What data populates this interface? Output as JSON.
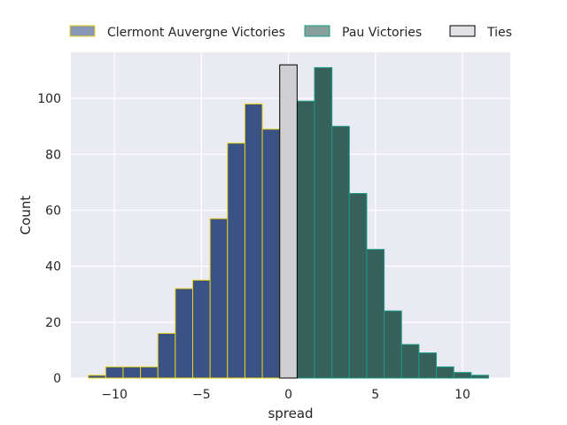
{
  "chart_data": {
    "type": "bar",
    "xlabel": "spread",
    "ylabel": "Count",
    "xlim": [
      -12.5,
      12.75
    ],
    "ylim": [
      0,
      116.5
    ],
    "xticks": [
      -10,
      -5,
      0,
      5,
      10
    ],
    "xtick_labels": [
      "−10",
      "−5",
      "0",
      "5",
      "10"
    ],
    "yticks": [
      0,
      20,
      40,
      60,
      80,
      100
    ],
    "yticks_labels": [
      "0",
      "20",
      "40",
      "60",
      "80",
      "100"
    ],
    "grid": true,
    "legend_position": "top, outside plot",
    "bin_width": 1,
    "series": [
      {
        "name": "Clermont Auvergne Victories",
        "fill": "#3b5284",
        "edge": "#e6d21c",
        "bins": [
          {
            "x": -11,
            "count": 1
          },
          {
            "x": -10,
            "count": 4
          },
          {
            "x": -9,
            "count": 4
          },
          {
            "x": -8,
            "count": 4
          },
          {
            "x": -7,
            "count": 16
          },
          {
            "x": -6,
            "count": 32
          },
          {
            "x": -5,
            "count": 35
          },
          {
            "x": -4,
            "count": 57
          },
          {
            "x": -3,
            "count": 84
          },
          {
            "x": -2,
            "count": 98
          },
          {
            "x": -1,
            "count": 89
          }
        ]
      },
      {
        "name": "Pau Victories",
        "fill": "#36605a",
        "edge": "#1a9a86",
        "bins": [
          {
            "x": 1,
            "count": 99
          },
          {
            "x": 2,
            "count": 111
          },
          {
            "x": 3,
            "count": 90
          },
          {
            "x": 4,
            "count": 66
          },
          {
            "x": 5,
            "count": 46
          },
          {
            "x": 6,
            "count": 24
          },
          {
            "x": 7,
            "count": 12
          },
          {
            "x": 8,
            "count": 9
          },
          {
            "x": 9,
            "count": 4
          },
          {
            "x": 10,
            "count": 2
          },
          {
            "x": 11,
            "count": 1
          }
        ]
      },
      {
        "name": "Ties",
        "fill": "#cfcfd2",
        "edge": "#000000",
        "bins": [
          {
            "x": 0,
            "count": 112
          }
        ]
      }
    ]
  },
  "colors": {
    "plot_background": "#eaeaf2",
    "grid": "#ffffff",
    "text": "#262626"
  }
}
